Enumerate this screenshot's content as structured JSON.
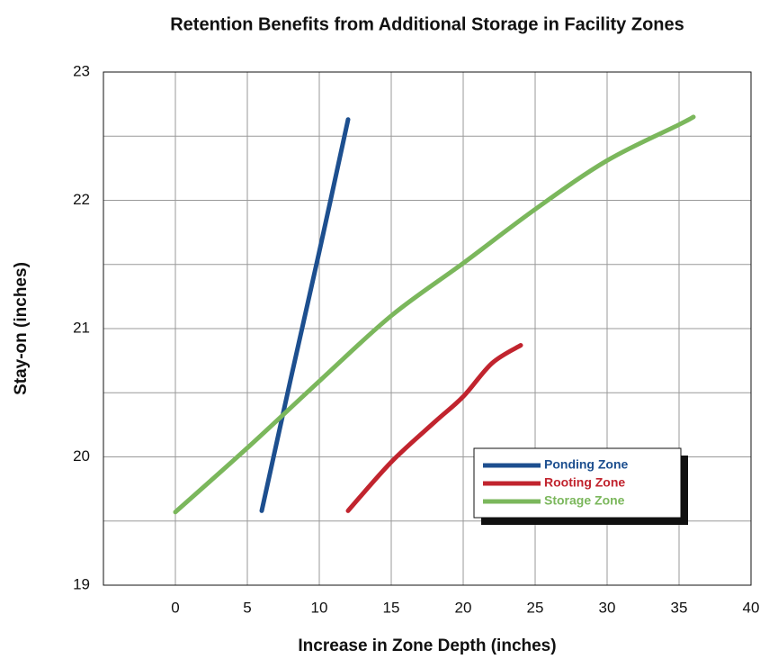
{
  "chart_data": {
    "type": "line",
    "title": "Retention Benefits from Additional Storage in Facility Zones",
    "x_label": "Increase in Zone Depth (inches)",
    "y_label": "Stay-on (inches)",
    "xlim": [
      -5,
      40
    ],
    "xticks": [
      0,
      5,
      10,
      15,
      20,
      25,
      30,
      35,
      40
    ],
    "ylim": [
      19,
      23
    ],
    "yticks": [
      19,
      20,
      21,
      22,
      23
    ],
    "y_minor_grid": [
      19.5,
      20.5,
      21.5,
      22.5
    ],
    "grid": true,
    "legend": "lower right",
    "series": [
      {
        "name": "Ponding Zone",
        "color": "#1d4f8f",
        "x": [
          6,
          8,
          10,
          12
        ],
        "values": [
          19.58,
          20.6,
          21.6,
          22.63
        ]
      },
      {
        "name": "Rooting Zone",
        "color": "#c1242e",
        "x": [
          12,
          15,
          18,
          20,
          22,
          24
        ],
        "values": [
          19.58,
          19.96,
          20.27,
          20.47,
          20.73,
          20.87
        ]
      },
      {
        "name": "Storage Zone",
        "color": "#7bb75c",
        "x": [
          0,
          5,
          10,
          15,
          20,
          25,
          30,
          35,
          36
        ],
        "values": [
          19.57,
          20.07,
          20.59,
          21.1,
          21.51,
          21.93,
          22.31,
          22.59,
          22.65
        ]
      }
    ]
  }
}
